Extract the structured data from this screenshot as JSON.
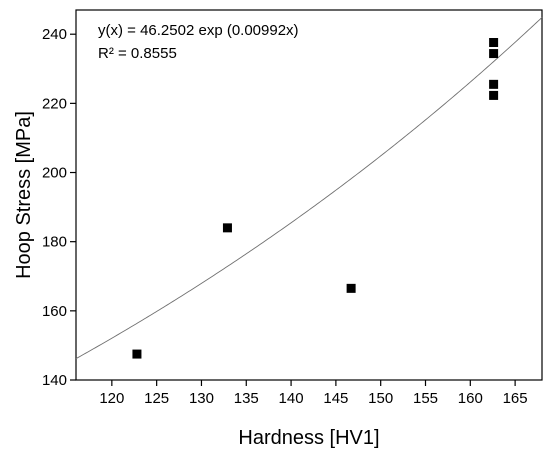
{
  "chart_data": {
    "type": "scatter",
    "xlabel": "Hardness [HV1]",
    "ylabel": "Hoop Stress [MPa]",
    "xlim": [
      116,
      168
    ],
    "ylim": [
      140,
      247
    ],
    "x_ticks": [
      120,
      125,
      130,
      135,
      140,
      145,
      150,
      155,
      160,
      165
    ],
    "y_ticks": [
      140,
      160,
      180,
      200,
      220,
      240
    ],
    "x_tick_labels": [
      "120",
      "125",
      "130",
      "135",
      "140",
      "145",
      "150",
      "155",
      "160",
      "165"
    ],
    "y_tick_labels": [
      "140",
      "160",
      "180",
      "200",
      "220",
      "240"
    ],
    "series": [
      {
        "points": [
          {
            "x": 122.8,
            "y": 147.5
          },
          {
            "x": 132.9,
            "y": 184.0
          },
          {
            "x": 146.7,
            "y": 166.5
          },
          {
            "x": 162.6,
            "y": 237.6
          },
          {
            "x": 162.6,
            "y": 234.4
          },
          {
            "x": 162.6,
            "y": 225.5
          },
          {
            "x": 162.6,
            "y": 222.3
          }
        ],
        "marker": "square",
        "color": "#000000"
      }
    ],
    "fit": {
      "model": "exponential",
      "a": 46.2502,
      "b": 0.00992,
      "color": "#707070"
    },
    "annotations": [
      "y(x) = 46.2502 exp (0.00992x)",
      "R² = 0.8555"
    ],
    "grid": false,
    "legend": "none"
  }
}
